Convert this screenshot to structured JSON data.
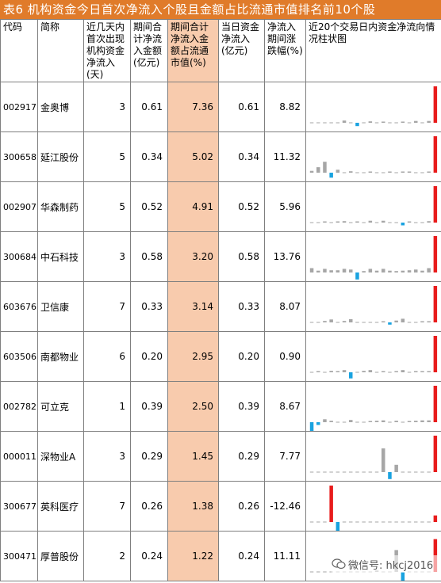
{
  "title": "表6 机构资金今日首次净流入个股且金额占比流通市值排名前10个股",
  "headers": {
    "code": "代码",
    "name": "简称",
    "days": "近几天内首次出现机构资金净流入(天)",
    "period_inflow": "期间合计净流入金额(亿元)",
    "period_ratio": "期间合计净流入金额占流通市值(%)",
    "today_inflow": "当日资金净流入(亿元)",
    "change": "净流入期间涨跌幅(%)",
    "chart": "近20个交易日内资金净流向情况柱状图"
  },
  "colors": {
    "title_bg": "#e07b2a",
    "highlight": "#f8cbad",
    "pos": "#e81c1c",
    "neg": "#1aa3e0",
    "grey": "#a6a6a6"
  },
  "rows": [
    {
      "code": "002917",
      "name": "金奥博",
      "days": "3",
      "period_inflow": "0.61",
      "period_ratio": "7.36",
      "today_inflow": "0.61",
      "change": "8.82",
      "bars": [
        0,
        0,
        0,
        0,
        0,
        0.06,
        0,
        -0.12,
        0,
        0.04,
        0,
        0.03,
        0,
        0,
        0.02,
        0,
        0.05,
        0,
        0.05,
        1.0
      ]
    },
    {
      "code": "300658",
      "name": "延江股份",
      "days": "5",
      "period_inflow": "0.34",
      "period_ratio": "5.02",
      "today_inflow": "0.34",
      "change": "11.32",
      "bars": [
        0.05,
        0.15,
        0.3,
        -0.18,
        0.08,
        0,
        0.04,
        0,
        0,
        0.03,
        0,
        0,
        0.02,
        0,
        0.02,
        0.03,
        0,
        0,
        0.03,
        1.0
      ]
    },
    {
      "code": "002907",
      "name": "华森制药",
      "days": "5",
      "period_inflow": "0.52",
      "period_ratio": "4.91",
      "today_inflow": "0.52",
      "change": "5.96",
      "bars": [
        0,
        0,
        0.03,
        0,
        0.03,
        0.04,
        0,
        0.03,
        0,
        0.05,
        0,
        0.05,
        0,
        0,
        -0.1,
        0.03,
        0,
        0,
        0.04,
        1.0
      ]
    },
    {
      "code": "300684",
      "name": "中石科技",
      "days": "3",
      "period_inflow": "0.58",
      "period_ratio": "3.20",
      "today_inflow": "0.58",
      "change": "13.76",
      "bars": [
        0.12,
        0.05,
        0.1,
        0.06,
        0.06,
        0.1,
        0.08,
        -0.25,
        0.04,
        0.1,
        0.05,
        0.1,
        0.05,
        0.04,
        0.05,
        0.06,
        0.08,
        0.05,
        0.12,
        1.0
      ]
    },
    {
      "code": "603676",
      "name": "卫信康",
      "days": "7",
      "period_inflow": "0.33",
      "period_ratio": "3.14",
      "today_inflow": "0.33",
      "change": "8.07",
      "bars": [
        0,
        0,
        0.04,
        0.08,
        0,
        0.04,
        0.09,
        0,
        0,
        0,
        0,
        0.03,
        -0.08,
        0.05,
        0.1,
        0,
        0,
        0.02,
        0.03,
        1.0
      ]
    },
    {
      "code": "603506",
      "name": "南都物业",
      "days": "6",
      "period_inflow": "0.20",
      "period_ratio": "2.95",
      "today_inflow": "0.20",
      "change": "0.90",
      "bars": [
        0,
        0.03,
        0,
        0.04,
        0.02,
        0.06,
        -0.22,
        0,
        0.04,
        0.06,
        0,
        0.03,
        0,
        0.03,
        0.06,
        0,
        0.03,
        0.03,
        0.02,
        1.0
      ]
    },
    {
      "code": "002782",
      "name": "可立克",
      "days": "1",
      "period_inflow": "0.39",
      "period_ratio": "2.50",
      "today_inflow": "0.39",
      "change": "8.67",
      "bars": [
        -0.35,
        -0.1,
        0.08,
        0.04,
        0,
        0,
        0.06,
        0,
        0,
        0.03,
        0.04,
        0.05,
        0,
        0.04,
        0,
        0.03,
        0.04,
        0.05,
        0.05,
        1.0
      ]
    },
    {
      "code": "000011",
      "name": "深物业A",
      "days": "3",
      "period_inflow": "0.29",
      "period_ratio": "1.45",
      "today_inflow": "0.29",
      "change": "7.77",
      "bars": [
        0,
        0,
        0,
        0,
        0,
        0,
        0,
        0,
        0,
        0,
        0,
        0.65,
        -0.25,
        0.2,
        0,
        0,
        0,
        0,
        0,
        1.0
      ]
    },
    {
      "code": "300677",
      "name": "英科医疗",
      "days": "7",
      "period_inflow": "0.26",
      "period_ratio": "1.38",
      "today_inflow": "0.26",
      "change": "-12.46",
      "bars": [
        0,
        0,
        0,
        1.0,
        -0.35,
        0,
        0,
        0,
        0,
        0,
        0,
        0,
        0,
        0,
        0,
        0,
        0,
        0,
        0,
        0.18
      ]
    },
    {
      "code": "300471",
      "name": "厚普股份",
      "days": "2",
      "period_inflow": "0.24",
      "period_ratio": "1.22",
      "today_inflow": "0.24",
      "change": "11.11",
      "bars": [
        0,
        0,
        0,
        0,
        0,
        0,
        0,
        0,
        0,
        0,
        0.04,
        0,
        0,
        0.6,
        -0.35,
        0,
        0,
        0,
        0,
        0.9
      ]
    }
  ],
  "watermark": "微信号: hkcj2016"
}
